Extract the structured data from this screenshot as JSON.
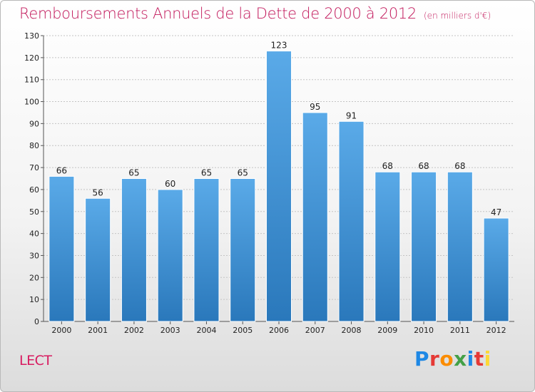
{
  "chart_data": {
    "type": "bar",
    "title": "Remboursements Annuels de la Dette de 2000 à 2012",
    "subtitle": "(en milliers d'€)",
    "categories": [
      "2000",
      "2001",
      "2002",
      "2003",
      "2004",
      "2005",
      "2006",
      "2007",
      "2008",
      "2009",
      "2010",
      "2011",
      "2012"
    ],
    "values": [
      66,
      56,
      65,
      60,
      65,
      65,
      123,
      95,
      91,
      68,
      68,
      68,
      47
    ],
    "xlabel": "",
    "ylabel": "",
    "ylim": [
      0,
      130
    ],
    "yticks": [
      0,
      10,
      20,
      30,
      40,
      50,
      60,
      70,
      80,
      90,
      100,
      110,
      120,
      130
    ],
    "grid": true,
    "bar_color_top": "#5aaae8",
    "bar_color_bottom": "#2a78bb"
  },
  "commune": "LECT",
  "logo": {
    "letters": [
      "P",
      "r",
      "o",
      "x",
      "i",
      "t",
      "i"
    ],
    "colors": [
      "#1e88e5",
      "#e53935",
      "#fb8c00",
      "#43a047",
      "#1e88e5",
      "#e53935",
      "#fdd835"
    ]
  }
}
